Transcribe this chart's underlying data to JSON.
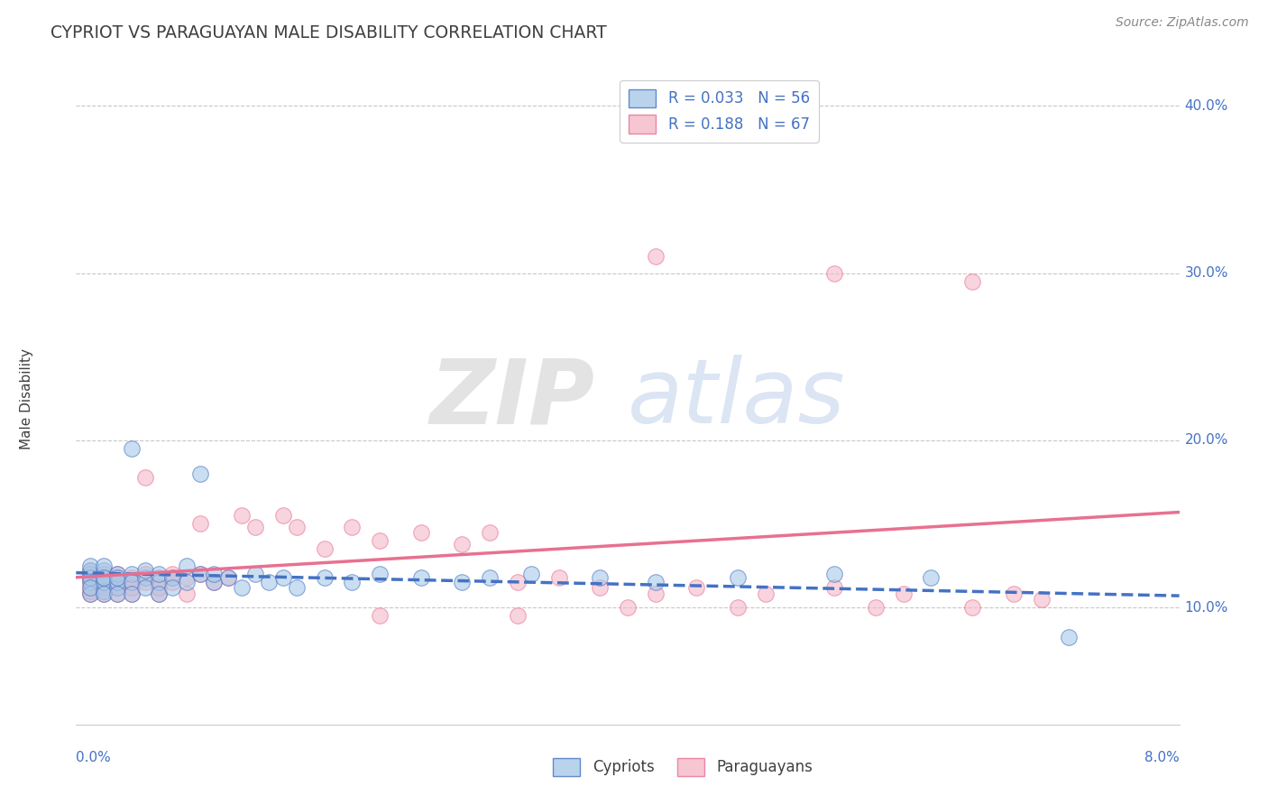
{
  "title": "CYPRIOT VS PARAGUAYAN MALE DISABILITY CORRELATION CHART",
  "source": "Source: ZipAtlas.com",
  "ylabel": "Male Disability",
  "cypriot_R": 0.033,
  "cypriot_N": 56,
  "paraguayan_R": 0.188,
  "paraguayan_N": 67,
  "xlim": [
    0.0,
    0.08
  ],
  "ylim": [
    0.03,
    0.42
  ],
  "yticks": [
    0.1,
    0.2,
    0.3,
    0.4
  ],
  "ytick_labels": [
    "10.0%",
    "20.0%",
    "30.0%",
    "40.0%"
  ],
  "cypriot_color": "#a8c8e8",
  "paraguayan_color": "#f4b8c8",
  "cypriot_line_color": "#4472c4",
  "paraguayan_line_color": "#e87090",
  "background_color": "#ffffff",
  "grid_color": "#c8c8c8",
  "title_color": "#404040",
  "label_color": "#4472c4",
  "watermark_zip": "ZIP",
  "watermark_atlas": "atlas",
  "cypriot_x": [
    0.001,
    0.001,
    0.001,
    0.001,
    0.001,
    0.001,
    0.001,
    0.002,
    0.002,
    0.002,
    0.002,
    0.002,
    0.002,
    0.002,
    0.003,
    0.003,
    0.003,
    0.003,
    0.003,
    0.004,
    0.004,
    0.004,
    0.004,
    0.005,
    0.005,
    0.005,
    0.006,
    0.006,
    0.006,
    0.007,
    0.007,
    0.008,
    0.008,
    0.009,
    0.009,
    0.01,
    0.01,
    0.011,
    0.012,
    0.013,
    0.014,
    0.015,
    0.016,
    0.018,
    0.02,
    0.022,
    0.025,
    0.028,
    0.03,
    0.033,
    0.038,
    0.042,
    0.048,
    0.055,
    0.062,
    0.072
  ],
  "cypriot_y": [
    0.12,
    0.115,
    0.122,
    0.108,
    0.118,
    0.112,
    0.125,
    0.118,
    0.11,
    0.122,
    0.115,
    0.108,
    0.125,
    0.118,
    0.112,
    0.12,
    0.115,
    0.108,
    0.118,
    0.195,
    0.12,
    0.115,
    0.108,
    0.118,
    0.112,
    0.122,
    0.115,
    0.12,
    0.108,
    0.118,
    0.112,
    0.125,
    0.115,
    0.18,
    0.12,
    0.115,
    0.12,
    0.118,
    0.112,
    0.12,
    0.115,
    0.118,
    0.112,
    0.118,
    0.115,
    0.12,
    0.118,
    0.115,
    0.118,
    0.12,
    0.118,
    0.115,
    0.118,
    0.12,
    0.118,
    0.082
  ],
  "paraguayan_x": [
    0.001,
    0.001,
    0.001,
    0.001,
    0.001,
    0.001,
    0.001,
    0.001,
    0.002,
    0.002,
    0.002,
    0.002,
    0.002,
    0.002,
    0.002,
    0.003,
    0.003,
    0.003,
    0.003,
    0.003,
    0.004,
    0.004,
    0.004,
    0.004,
    0.005,
    0.005,
    0.005,
    0.006,
    0.006,
    0.006,
    0.007,
    0.007,
    0.008,
    0.008,
    0.009,
    0.009,
    0.01,
    0.011,
    0.012,
    0.013,
    0.015,
    0.016,
    0.018,
    0.02,
    0.022,
    0.025,
    0.028,
    0.03,
    0.032,
    0.035,
    0.038,
    0.04,
    0.042,
    0.045,
    0.048,
    0.05,
    0.055,
    0.058,
    0.06,
    0.065,
    0.068,
    0.07,
    0.042,
    0.055,
    0.065,
    0.022,
    0.032
  ],
  "paraguayan_y": [
    0.118,
    0.112,
    0.12,
    0.108,
    0.115,
    0.122,
    0.11,
    0.118,
    0.112,
    0.12,
    0.115,
    0.108,
    0.118,
    0.112,
    0.12,
    0.115,
    0.108,
    0.118,
    0.112,
    0.12,
    0.115,
    0.108,
    0.118,
    0.112,
    0.178,
    0.12,
    0.115,
    0.108,
    0.118,
    0.112,
    0.115,
    0.12,
    0.108,
    0.118,
    0.15,
    0.12,
    0.115,
    0.118,
    0.155,
    0.148,
    0.155,
    0.148,
    0.135,
    0.148,
    0.14,
    0.145,
    0.138,
    0.145,
    0.115,
    0.118,
    0.112,
    0.1,
    0.108,
    0.112,
    0.1,
    0.108,
    0.112,
    0.1,
    0.108,
    0.1,
    0.108,
    0.105,
    0.31,
    0.3,
    0.295,
    0.095,
    0.095
  ]
}
